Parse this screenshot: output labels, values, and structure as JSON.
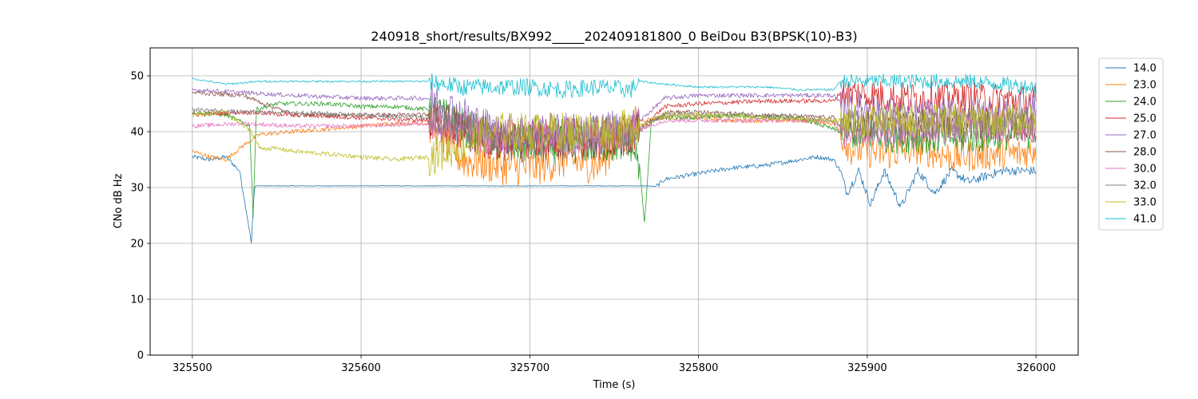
{
  "chart_data": {
    "type": "line",
    "title": "240918_short/results/BX992_____202409181800_0 BeiDou B3(BPSK(10)-B3)",
    "xlabel": "Time (s)",
    "ylabel": "CNo dB Hz",
    "xlim": [
      325475,
      326025
    ],
    "ylim": [
      0,
      55
    ],
    "xticks": [
      325500,
      325600,
      325700,
      325800,
      325900,
      326000
    ],
    "yticks": [
      0,
      10,
      20,
      30,
      40,
      50
    ],
    "grid": true,
    "legend_position": "upper right, outside plot",
    "series": [
      {
        "name": "14.0",
        "color": "#1f77b4",
        "x": [
          325500,
          325510,
          325520,
          325528,
          325533,
          325535,
          325536,
          325537,
          325540,
          325560,
          325600,
          325640,
          325700,
          325760,
          325770,
          325775,
          325780,
          325790,
          325800,
          325820,
          325840,
          325860,
          325870,
          325880,
          325884,
          325888,
          325895,
          325902,
          325910,
          325920,
          325930,
          325940,
          325950,
          325960,
          325980,
          326000
        ],
        "y": [
          35.5,
          35,
          35.5,
          33,
          24,
          20,
          26,
          30.3,
          30.3,
          30.3,
          30.3,
          30.3,
          30.3,
          30.3,
          30.3,
          30.2,
          31.5,
          32,
          32.5,
          33.5,
          34,
          35,
          35.5,
          35,
          33,
          29,
          33,
          27,
          33,
          26.5,
          33,
          29,
          33,
          31,
          33,
          33
        ]
      },
      {
        "name": "23.0",
        "color": "#ff7f0e",
        "x": [
          325500,
          325510,
          325520,
          325530,
          325540,
          325560,
          325580,
          325600,
          325620,
          325640,
          325660,
          325680,
          325700,
          325720,
          325740,
          325765,
          325780,
          325800,
          325820,
          325840,
          325860,
          325880,
          325890,
          325910,
          325930,
          325950,
          325970,
          325990,
          326000
        ],
        "y": [
          36.5,
          35.5,
          35,
          37.5,
          39.5,
          40,
          40.5,
          41,
          41.5,
          41.5,
          35,
          34,
          33.5,
          35,
          34,
          42,
          42.5,
          42.5,
          42,
          42,
          42,
          41.5,
          37,
          36,
          37,
          35.5,
          36,
          36,
          37
        ]
      },
      {
        "name": "24.0",
        "color": "#2ca02c",
        "x": [
          325500,
          325520,
          325534,
          325536,
          325538,
          325550,
          325580,
          325600,
          325620,
          325640,
          325680,
          325720,
          325760,
          325765,
          325768,
          325772,
          325780,
          325800,
          325820,
          325860,
          325884,
          325920,
          325960,
          326000
        ],
        "y": [
          43.5,
          43,
          41,
          25,
          44,
          45,
          45,
          44.5,
          44.5,
          44,
          38,
          37.5,
          38,
          34,
          23.5,
          42,
          42.5,
          42.5,
          43,
          42.5,
          40,
          39,
          39,
          40
        ]
      },
      {
        "name": "25.0",
        "color": "#d62728",
        "x": [
          325500,
          325530,
          325560,
          325600,
          325640,
          325680,
          325720,
          325760,
          325780,
          325800,
          325840,
          325880,
          325884,
          325920,
          325960,
          326000
        ],
        "y": [
          43,
          43.5,
          43,
          42.5,
          42,
          38,
          39,
          39,
          44.5,
          45,
          45.5,
          45.5,
          47,
          46,
          46,
          45.5
        ]
      },
      {
        "name": "27.0",
        "color": "#9467bd",
        "x": [
          325500,
          325530,
          325560,
          325600,
          325640,
          325680,
          325720,
          325760,
          325780,
          325800,
          325840,
          325880,
          325884,
          325920,
          325960,
          326000
        ],
        "y": [
          47.5,
          47,
          46.5,
          46,
          46,
          40,
          40,
          40.5,
          46,
          46.5,
          46.5,
          46.5,
          45,
          43,
          43,
          44
        ]
      },
      {
        "name": "28.0",
        "color": "#8c564b",
        "x": [
          325500,
          325530,
          325560,
          325600,
          325640,
          325680,
          325720,
          325760,
          325780,
          325800,
          325840,
          325880,
          325884,
          325920,
          325960,
          326000
        ],
        "y": [
          47,
          46.5,
          43,
          43,
          43,
          38,
          38,
          39,
          43.5,
          43.5,
          43,
          42.5,
          41,
          41,
          41,
          41
        ]
      },
      {
        "name": "30.0",
        "color": "#e377c2",
        "x": [
          325500,
          325530,
          325560,
          325600,
          325640,
          325680,
          325720,
          325760,
          325780,
          325800,
          325840,
          325880,
          325884,
          325920,
          325960,
          326000
        ],
        "y": [
          41,
          41.5,
          41,
          41,
          41.5,
          39,
          39,
          40,
          42,
          42,
          42,
          42,
          40,
          40,
          41,
          41
        ]
      },
      {
        "name": "32.0",
        "color": "#7f7f7f",
        "x": [
          325500,
          325530,
          325560,
          325600,
          325640,
          325680,
          325720,
          325760,
          325780,
          325800,
          325840,
          325880,
          325884,
          325920,
          325960,
          326000
        ],
        "y": [
          44,
          43.5,
          43.5,
          43,
          42.5,
          39,
          39,
          40,
          43,
          43,
          42.5,
          42,
          41,
          41,
          41.5,
          41.5
        ]
      },
      {
        "name": "33.0",
        "color": "#bcbd22",
        "x": [
          325500,
          325520,
          325535,
          325540,
          325550,
          325560,
          325580,
          325600,
          325620,
          325640,
          325680,
          325720,
          325760,
          325780,
          325800,
          325840,
          325880,
          325884,
          325920,
          325960,
          326000
        ],
        "y": [
          43,
          43.5,
          40,
          37,
          37,
          36.5,
          36,
          35.5,
          35,
          35.5,
          40,
          40,
          40.5,
          43,
          43,
          42.5,
          42,
          42,
          42,
          42,
          42
        ]
      },
      {
        "name": "41.0",
        "color": "#17becf",
        "x": [
          325500,
          325520,
          325540,
          325560,
          325580,
          325600,
          325620,
          325640,
          325660,
          325680,
          325700,
          325720,
          325740,
          325760,
          325765,
          325780,
          325800,
          325820,
          325840,
          325860,
          325880,
          325884,
          325900,
          325920,
          325940,
          325960,
          325980,
          326000
        ],
        "y": [
          49.5,
          48.5,
          49,
          49,
          49,
          49,
          49,
          49,
          48,
          48,
          48,
          47.5,
          48,
          47.5,
          49,
          48.5,
          48,
          48,
          48,
          47.5,
          47.5,
          49,
          49,
          49,
          49,
          49,
          48.5,
          48
        ]
      }
    ]
  }
}
